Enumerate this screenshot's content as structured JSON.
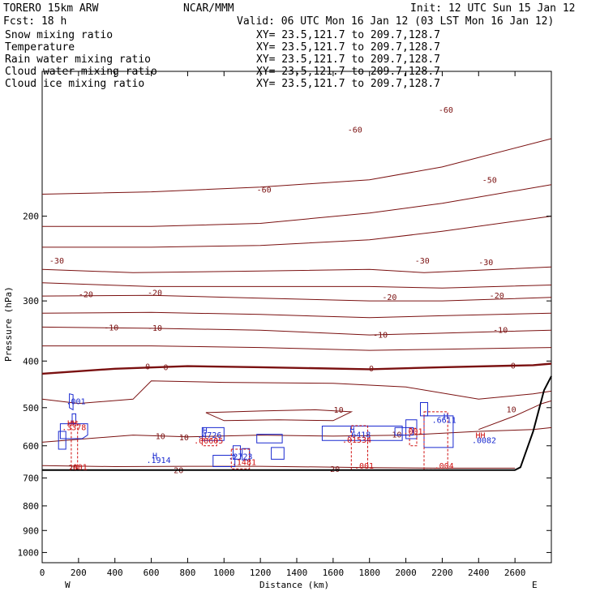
{
  "header": {
    "title_left": "TORERO  15km ARW",
    "title_center": "NCAR/MMM",
    "init": "Init: 12 UTC Sun 15 Jan 12",
    "fcst": "Fcst:   18 h",
    "valid": "Valid: 06 UTC Mon 16 Jan 12 (03 LST Mon 16 Jan 12)"
  },
  "fields": [
    {
      "label": "Snow mixing ratio",
      "xy": "XY=  23.5,121.7 to 209.7,128.7",
      "label_color": "#000000",
      "xy_color": "#000000"
    },
    {
      "label": "Temperature",
      "xy": "XY=  23.5,121.7 to 209.7,128.7",
      "label_color": "#8b1a1a",
      "xy_color": "#d01010"
    },
    {
      "label": "Rain water mixing ratio",
      "xy": "XY=  23.5,121.7 to 209.7,128.7",
      "label_color": "#d01010",
      "xy_color": "#d01010"
    },
    {
      "label": "Cloud water mixing ratio",
      "xy": "XY=  23.5,121.7 to 209.7,128.7",
      "label_color": "#1a2ad0",
      "xy_color": "#1a2ad0"
    },
    {
      "label": "Cloud ice mixing ratio",
      "xy": "XY=  23.5,121.7 to 209.7,128.7",
      "label_color": "#000000",
      "xy_color": "#000000"
    }
  ],
  "chart_data": {
    "type": "cross-section contour",
    "xlabel": "Distance (km)",
    "ylabel": "Pressure (hPa)",
    "xlim": [
      0,
      2800
    ],
    "ylim": [
      1050,
      100
    ],
    "y_scale": "log",
    "x_ticks": [
      0,
      200,
      400,
      600,
      800,
      1000,
      1200,
      1400,
      1600,
      1800,
      2000,
      2200,
      2400,
      2600
    ],
    "y_ticks": [
      200,
      300,
      400,
      500,
      600,
      700,
      800,
      900,
      1000
    ],
    "x_end_labels": {
      "left": "W",
      "right": "E"
    },
    "temperature_contours": [
      {
        "level": "-60",
        "points": [
          [
            0,
            180
          ],
          [
            600,
            178
          ],
          [
            1200,
            174
          ],
          [
            1800,
            168
          ],
          [
            2200,
            158
          ],
          [
            2800,
            138
          ]
        ],
        "labels": [
          [
            1220,
            176,
            "-60"
          ],
          [
            1720,
            132,
            "-60"
          ],
          [
            2220,
            120,
            "-60"
          ]
        ]
      },
      {
        "level": "-50",
        "points": [
          [
            0,
            210
          ],
          [
            600,
            210
          ],
          [
            1200,
            207
          ],
          [
            1800,
            197
          ],
          [
            2200,
            188
          ],
          [
            2800,
            172
          ]
        ],
        "labels": [
          [
            2460,
            168,
            "-50"
          ]
        ]
      },
      {
        "level": "-40",
        "points": [
          [
            0,
            232
          ],
          [
            600,
            232
          ],
          [
            1200,
            230
          ],
          [
            1800,
            224
          ],
          [
            2200,
            215
          ],
          [
            2800,
            200
          ]
        ],
        "labels": []
      },
      {
        "level": "-30",
        "points": [
          [
            0,
            258
          ],
          [
            500,
            262
          ],
          [
            1200,
            260
          ],
          [
            1800,
            258
          ],
          [
            2100,
            262
          ],
          [
            2800,
            255
          ]
        ],
        "labels": [
          [
            80,
            247,
            "-30"
          ],
          [
            2090,
            247,
            "-30"
          ],
          [
            2440,
            249,
            "-30"
          ]
        ]
      },
      {
        "level": "-25",
        "points": [
          [
            0,
            275
          ],
          [
            600,
            280
          ],
          [
            1200,
            280
          ],
          [
            1800,
            280
          ],
          [
            2200,
            282
          ],
          [
            2800,
            278
          ]
        ],
        "labels": []
      },
      {
        "level": "-20",
        "points": [
          [
            0,
            293
          ],
          [
            600,
            292
          ],
          [
            1200,
            296
          ],
          [
            1800,
            300
          ],
          [
            2200,
            300
          ],
          [
            2800,
            295
          ]
        ],
        "labels": [
          [
            240,
            290,
            "-20"
          ],
          [
            620,
            288,
            "-20"
          ],
          [
            1910,
            294,
            "-20"
          ],
          [
            2500,
            292,
            "-20"
          ]
        ]
      },
      {
        "level": "-15",
        "points": [
          [
            0,
            318
          ],
          [
            600,
            317
          ],
          [
            1200,
            320
          ],
          [
            1800,
            325
          ],
          [
            2200,
            322
          ],
          [
            2800,
            318
          ]
        ],
        "labels": []
      },
      {
        "level": "-10",
        "points": [
          [
            0,
            340
          ],
          [
            600,
            342
          ],
          [
            1200,
            345
          ],
          [
            1800,
            353
          ],
          [
            2200,
            350
          ],
          [
            2800,
            345
          ]
        ],
        "labels": [
          [
            380,
            340,
            "-10"
          ],
          [
            620,
            341,
            "-10"
          ],
          [
            1860,
            352,
            "-10"
          ],
          [
            2520,
            344,
            "-10"
          ]
        ]
      },
      {
        "level": "-5",
        "points": [
          [
            0,
            372
          ],
          [
            600,
            372
          ],
          [
            1200,
            375
          ],
          [
            1800,
            380
          ],
          [
            2200,
            378
          ],
          [
            2800,
            375
          ]
        ],
        "labels": []
      },
      {
        "level": "0",
        "points": [
          [
            0,
            425
          ],
          [
            400,
            415
          ],
          [
            800,
            410
          ],
          [
            1200,
            412
          ],
          [
            1800,
            416
          ],
          [
            2200,
            412
          ],
          [
            2700,
            408
          ],
          [
            2800,
            405
          ]
        ],
        "labels": [
          [
            580,
            410,
            "0"
          ],
          [
            680,
            411,
            "0"
          ],
          [
            1810,
            414,
            "0"
          ],
          [
            2590,
            408,
            "0"
          ]
        ],
        "bold": true
      },
      {
        "level": "5",
        "points": [
          [
            0,
            480
          ],
          [
            200,
            490
          ],
          [
            500,
            480
          ],
          [
            600,
            440
          ],
          [
            1000,
            443
          ],
          [
            1600,
            445
          ],
          [
            2000,
            453
          ],
          [
            2400,
            480
          ],
          [
            2700,
            468
          ],
          [
            2800,
            462
          ]
        ],
        "labels": []
      },
      {
        "level": "10",
        "points": [
          [
            0,
            590
          ],
          [
            500,
            570
          ],
          [
            800,
            575
          ],
          [
            1200,
            570
          ],
          [
            1600,
            573
          ],
          [
            2000,
            570
          ],
          [
            2400,
            560
          ],
          [
            2700,
            555
          ],
          [
            2800,
            550
          ]
        ],
        "labels": [
          [
            650,
            572,
            "10"
          ],
          [
            780,
            575,
            "10"
          ],
          [
            1950,
            568,
            "10"
          ]
        ]
      },
      {
        "level": "10",
        "points": [
          [
            900,
            512
          ],
          [
            1200,
            508
          ],
          [
            1500,
            505
          ],
          [
            1700,
            510
          ],
          [
            1600,
            532
          ],
          [
            1300,
            530
          ],
          [
            1000,
            532
          ],
          [
            900,
            512
          ]
        ],
        "labels": [
          [
            1630,
            504,
            "10"
          ]
        ]
      },
      {
        "level": "10",
        "points": [
          [
            2400,
            555
          ],
          [
            2600,
            520
          ],
          [
            2750,
            490
          ],
          [
            2800,
            484
          ]
        ],
        "labels": [
          [
            2580,
            503,
            "10"
          ]
        ]
      },
      {
        "level": "20",
        "points": [
          [
            0,
            660
          ],
          [
            400,
            663
          ],
          [
            800,
            662
          ],
          [
            1200,
            662
          ],
          [
            1800,
            666
          ],
          [
            2200,
            668
          ],
          [
            2600,
            668
          ]
        ],
        "labels": [
          [
            170,
            666,
            "20"
          ],
          [
            750,
            673,
            "20"
          ],
          [
            1610,
            670,
            "20"
          ]
        ]
      }
    ],
    "cloud_labels": [
      {
        "x": 185,
        "y": 492,
        "text": ".001",
        "color": "#1a2ad0"
      },
      {
        "x": 165,
        "y": 546,
        "text": "HH",
        "color": "#d01010"
      },
      {
        "x": 175,
        "y": 557,
        "text": ".3378",
        "color": "#d01010"
      },
      {
        "x": 895,
        "y": 565,
        "text": "H",
        "color": "#1a2ad0"
      },
      {
        "x": 920,
        "y": 578,
        "text": ".4726",
        "color": "#1a2ad0"
      },
      {
        "x": 915,
        "y": 593,
        "text": ".00605",
        "color": "#d01010"
      },
      {
        "x": 1090,
        "y": 640,
        "text": ".2723",
        "color": "#1a2ad0"
      },
      {
        "x": 1110,
        "y": 658,
        "text": ".1481",
        "color": "#d01010"
      },
      {
        "x": 620,
        "y": 638,
        "text": "H",
        "color": "#1a2ad0"
      },
      {
        "x": 640,
        "y": 652,
        "text": ".1914",
        "color": "#1a2ad0"
      },
      {
        "x": 1705,
        "y": 563,
        "text": "H",
        "color": "#1a2ad0"
      },
      {
        "x": 1740,
        "y": 577,
        "text": ".6418",
        "color": "#1a2ad0"
      },
      {
        "x": 1730,
        "y": 591,
        "text": ".01534",
        "color": "#d01010"
      },
      {
        "x": 2220,
        "y": 528,
        "text": "H",
        "color": "#1a2ad0"
      },
      {
        "x": 2210,
        "y": 538,
        "text": ".6611",
        "color": "#1a2ad0"
      },
      {
        "x": 2040,
        "y": 568,
        "text": ".001",
        "color": "#d01010"
      },
      {
        "x": 2410,
        "y": 579,
        "text": "HH",
        "color": "#d01010"
      },
      {
        "x": 2430,
        "y": 592,
        "text": ".0082",
        "color": "#1a2ad0"
      },
      {
        "x": 1770,
        "y": 670,
        "text": ".001",
        "color": "#d01010"
      },
      {
        "x": 2210,
        "y": 670,
        "text": ".004",
        "color": "#d01010"
      },
      {
        "x": 195,
        "y": 673,
        "text": ".001",
        "color": "#d01010"
      }
    ],
    "blue_contours": [
      [
        [
          150,
          468
        ],
        [
          170,
          470
        ],
        [
          170,
          505
        ],
        [
          150,
          500
        ],
        [
          150,
          468
        ]
      ],
      [
        [
          165,
          515
        ],
        [
          185,
          515
        ],
        [
          185,
          540
        ],
        [
          165,
          540
        ],
        [
          165,
          515
        ]
      ],
      [
        [
          100,
          540
        ],
        [
          250,
          540
        ],
        [
          250,
          570
        ],
        [
          220,
          580
        ],
        [
          100,
          580
        ],
        [
          100,
          540
        ]
      ],
      [
        [
          90,
          560
        ],
        [
          130,
          560
        ],
        [
          130,
          610
        ],
        [
          90,
          610
        ],
        [
          90,
          560
        ]
      ],
      [
        [
          1940,
          550
        ],
        [
          2040,
          550
        ],
        [
          2040,
          570
        ],
        [
          1940,
          570
        ],
        [
          1940,
          550
        ]
      ],
      [
        [
          1540,
          546
        ],
        [
          1980,
          546
        ],
        [
          1980,
          585
        ],
        [
          1540,
          585
        ],
        [
          1540,
          546
        ]
      ],
      [
        [
          880,
          550
        ],
        [
          1000,
          550
        ],
        [
          1000,
          585
        ],
        [
          880,
          585
        ],
        [
          880,
          550
        ]
      ],
      [
        [
          1180,
          568
        ],
        [
          1320,
          568
        ],
        [
          1320,
          592
        ],
        [
          1180,
          592
        ],
        [
          1180,
          568
        ]
      ],
      [
        [
          940,
          628
        ],
        [
          1060,
          628
        ],
        [
          1060,
          663
        ],
        [
          940,
          663
        ],
        [
          940,
          628
        ]
      ],
      [
        [
          1050,
          600
        ],
        [
          1090,
          600
        ],
        [
          1090,
          640
        ],
        [
          1050,
          640
        ],
        [
          1050,
          600
        ]
      ],
      [
        [
          1100,
          608
        ],
        [
          1140,
          608
        ],
        [
          1140,
          642
        ],
        [
          1100,
          642
        ],
        [
          1100,
          608
        ]
      ],
      [
        [
          1260,
          605
        ],
        [
          1330,
          605
        ],
        [
          1330,
          640
        ],
        [
          1260,
          640
        ],
        [
          1260,
          605
        ]
      ],
      [
        [
          2000,
          530
        ],
        [
          2060,
          530
        ],
        [
          2060,
          580
        ],
        [
          2000,
          580
        ],
        [
          2000,
          530
        ]
      ],
      [
        [
          2080,
          488
        ],
        [
          2120,
          488
        ],
        [
          2120,
          520
        ],
        [
          2080,
          520
        ],
        [
          2080,
          488
        ]
      ],
      [
        [
          2100,
          520
        ],
        [
          2260,
          520
        ],
        [
          2260,
          605
        ],
        [
          2100,
          605
        ],
        [
          2100,
          520
        ]
      ]
    ],
    "red_dashed_contours": [
      [
        [
          160,
          535
        ],
        [
          195,
          535
        ],
        [
          195,
          675
        ],
        [
          160,
          675
        ],
        [
          160,
          535
        ]
      ],
      [
        [
          1040,
          610
        ],
        [
          1140,
          610
        ],
        [
          1140,
          670
        ],
        [
          1040,
          670
        ],
        [
          1040,
          610
        ]
      ],
      [
        [
          1700,
          545
        ],
        [
          1790,
          545
        ],
        [
          1790,
          673
        ],
        [
          1700,
          673
        ],
        [
          1700,
          545
        ]
      ],
      [
        [
          2020,
          552
        ],
        [
          2060,
          552
        ],
        [
          2060,
          600
        ],
        [
          2020,
          600
        ],
        [
          2020,
          552
        ]
      ],
      [
        [
          2100,
          510
        ],
        [
          2230,
          510
        ],
        [
          2230,
          673
        ],
        [
          2100,
          673
        ],
        [
          2100,
          510
        ]
      ],
      [
        [
          880,
          580
        ],
        [
          960,
          580
        ],
        [
          960,
          600
        ],
        [
          880,
          600
        ],
        [
          880,
          580
        ]
      ]
    ],
    "terrain": [
      [
        0,
        674
      ],
      [
        2600,
        674
      ],
      [
        2630,
        665
      ],
      [
        2700,
        560
      ],
      [
        2760,
        460
      ],
      [
        2800,
        430
      ]
    ]
  }
}
